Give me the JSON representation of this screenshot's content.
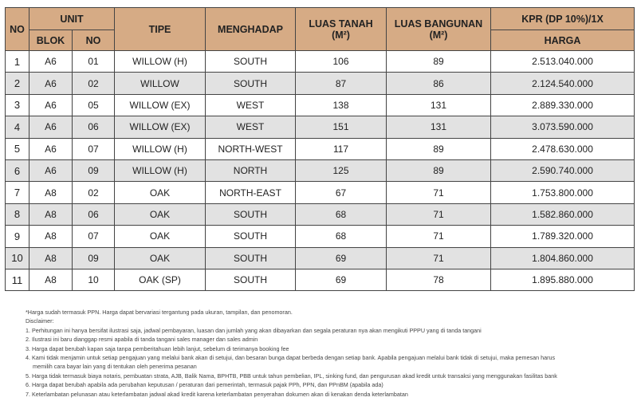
{
  "table": {
    "headers": {
      "no": "NO",
      "unit": "UNIT",
      "blok": "BLOK",
      "unit_no": "NO",
      "tipe": "TIPE",
      "menghadap": "MENGHADAP",
      "luas_tanah": "LUAS TANAH",
      "luas_tanah_unit": "(M²)",
      "luas_bangunan": "LUAS BANGUNAN",
      "luas_bangunan_unit": "(M²)",
      "kpr": "KPR (DP 10%)/1X",
      "harga": "HARGA"
    },
    "rows": [
      {
        "no": "1",
        "blok": "A6",
        "unit_no": "01",
        "tipe": "WILLOW (H)",
        "menghadap": "SOUTH",
        "luas_tanah": "106",
        "luas_bangunan": "89",
        "harga": "2.513.040.000"
      },
      {
        "no": "2",
        "blok": "A6",
        "unit_no": "02",
        "tipe": "WILLOW",
        "menghadap": "SOUTH",
        "luas_tanah": "87",
        "luas_bangunan": "86",
        "harga": "2.124.540.000"
      },
      {
        "no": "3",
        "blok": "A6",
        "unit_no": "05",
        "tipe": "WILLOW (EX)",
        "menghadap": "WEST",
        "luas_tanah": "138",
        "luas_bangunan": "131",
        "harga": "2.889.330.000"
      },
      {
        "no": "4",
        "blok": "A6",
        "unit_no": "06",
        "tipe": "WILLOW (EX)",
        "menghadap": "WEST",
        "luas_tanah": "151",
        "luas_bangunan": "131",
        "harga": "3.073.590.000"
      },
      {
        "no": "5",
        "blok": "A6",
        "unit_no": "07",
        "tipe": "WILLOW (H)",
        "menghadap": "NORTH-WEST",
        "luas_tanah": "117",
        "luas_bangunan": "89",
        "harga": "2.478.630.000"
      },
      {
        "no": "6",
        "blok": "A6",
        "unit_no": "09",
        "tipe": "WILLOW (H)",
        "menghadap": "NORTH",
        "luas_tanah": "125",
        "luas_bangunan": "89",
        "harga": "2.590.740.000"
      },
      {
        "no": "7",
        "blok": "A8",
        "unit_no": "02",
        "tipe": "OAK",
        "menghadap": "NORTH-EAST",
        "luas_tanah": "67",
        "luas_bangunan": "71",
        "harga": "1.753.800.000"
      },
      {
        "no": "8",
        "blok": "A8",
        "unit_no": "06",
        "tipe": "OAK",
        "menghadap": "SOUTH",
        "luas_tanah": "68",
        "luas_bangunan": "71",
        "harga": "1.582.860.000"
      },
      {
        "no": "9",
        "blok": "A8",
        "unit_no": "07",
        "tipe": "OAK",
        "menghadap": "SOUTH",
        "luas_tanah": "68",
        "luas_bangunan": "71",
        "harga": "1.789.320.000"
      },
      {
        "no": "10",
        "blok": "A8",
        "unit_no": "09",
        "tipe": "OAK",
        "menghadap": "SOUTH",
        "luas_tanah": "69",
        "luas_bangunan": "71",
        "harga": "1.804.860.000"
      },
      {
        "no": "11",
        "blok": "A8",
        "unit_no": "10",
        "tipe": "OAK (SP)",
        "menghadap": "SOUTH",
        "luas_tanah": "69",
        "luas_bangunan": "78",
        "harga": "1.895.880.000"
      }
    ]
  },
  "notes": {
    "price_note": "*Harga sudah termasuk PPN. Harga dapat bervariasi tergantung pada ukuran, tampilan, dan penomoran.",
    "disclaimer_title": "Disclaimer:",
    "items": [
      "1. Perhitungan ini hanya bersifat ilustrasi saja, jadwal pembayaran, luasan dan jumlah yang akan dibayarkan dan segala peraturan nya akan mengikuti PPPU yang di tanda tangani",
      "2. Ilustrasi ini baru dianggap resmi apabila di tanda tangani sales manager dan sales admin",
      "3. Harga dapat berubah kapan saja tanpa pemberitahuan lebih lanjut, sebelum di terimanya booking fee",
      "4. Kami tidak menjamin untuk setiap pengajuan yang melalui bank akan di setujui, dan besaran bunga dapat berbeda dengan setiap bank. Apabila pengajuan melalui bank tidak di  setujui, maka pemesan harus",
      "memilih cara bayar lain yang di tentukan oleh penerima pesanan",
      "5. Harga tidak termasuk biaya notaris, pembuatan strata, AJB, Balik Nama, BPHTB, PBB untuk tahun pembelian, IPL, sinking fund, dan pengurusan akad kredit untuk transaksi yang menggunakan fasilitas bank",
      "6. Harga dapat berubah apabila ada perubahan keputusan / peraturan dari pemerintah, termasuk pajak PPh, PPN, dan PPnBM (apabila ada)",
      "7. Keterlambatan pelunasan atau keterlambatan jadwal akad kredit karena keterlambatan penyerahan dokumen akan di kenakan denda keterlambatan"
    ]
  }
}
